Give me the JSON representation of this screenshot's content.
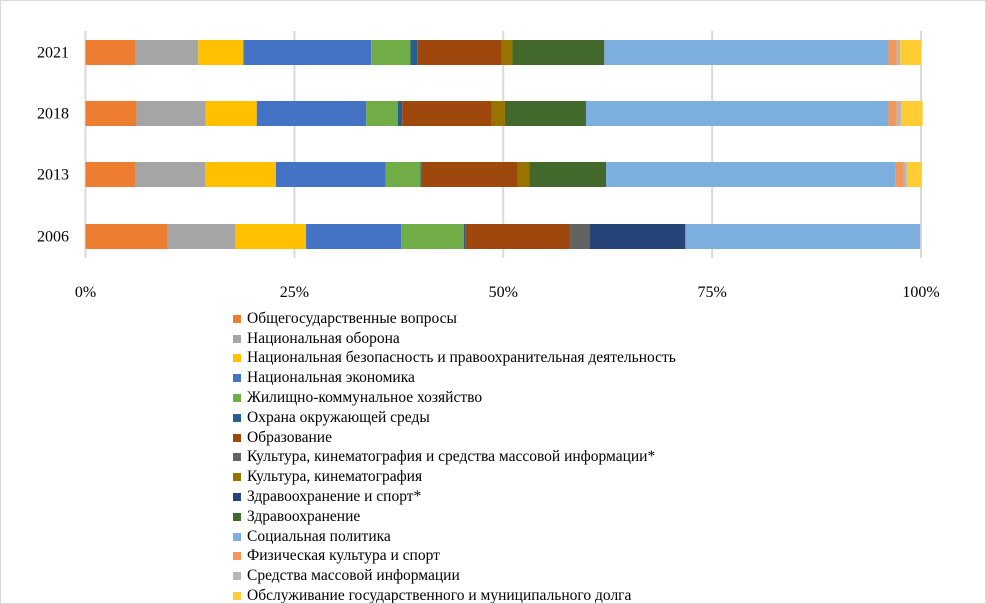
{
  "chart_data": {
    "type": "bar",
    "orientation": "horizontal",
    "stacked": "percent",
    "categories": [
      "2021",
      "2018",
      "2013",
      "2006"
    ],
    "xlim": [
      0,
      100
    ],
    "xticks": [
      "0%",
      "25%",
      "50%",
      "75%",
      "100%"
    ],
    "grid": true,
    "legend_position": "bottom",
    "series": [
      {
        "name": "Общегосударственные вопросы",
        "color": "#ED7D31",
        "values": [
          6.0,
          6.1,
          6.0,
          9.8
        ]
      },
      {
        "name": "Национальная оборона",
        "color": "#A5A5A5",
        "values": [
          7.5,
          8.3,
          8.3,
          8.1
        ]
      },
      {
        "name": "Национальная безопасность и правоохранительная деятельность",
        "color": "#FFC000",
        "values": [
          5.4,
          6.1,
          8.5,
          8.5
        ]
      },
      {
        "name": "Национальная экономика",
        "color": "#4472C4",
        "values": [
          15.3,
          13.1,
          13.1,
          11.4
        ]
      },
      {
        "name": "Жилищно-коммунальное хозяйство",
        "color": "#70AD47",
        "values": [
          4.7,
          3.8,
          4.2,
          7.5
        ]
      },
      {
        "name": "Охрана окружающей среды",
        "color": "#255E91",
        "values": [
          0.8,
          0.5,
          0.1,
          0.2
        ]
      },
      {
        "name": "Образование",
        "color": "#9E480E",
        "values": [
          10.1,
          10.7,
          11.5,
          12.5
        ]
      },
      {
        "name": "Культура, кинематография и средства массовой информации*",
        "color": "#636363",
        "values": [
          0,
          0,
          0,
          2.3
        ]
      },
      {
        "name": "Культура, кинематография",
        "color": "#997300",
        "values": [
          1.3,
          1.6,
          1.4,
          0
        ]
      },
      {
        "name": "Здравоохранение и спорт*",
        "color": "#264478",
        "values": [
          0,
          0,
          0,
          11.5
        ]
      },
      {
        "name": "Здравоохранение",
        "color": "#43682B",
        "values": [
          11.0,
          9.7,
          9.2,
          0
        ]
      },
      {
        "name": "Социальная политика",
        "color": "#7CAFDD",
        "values": [
          34.0,
          36.2,
          34.6,
          28.1
        ]
      },
      {
        "name": "Физическая культура и спорт",
        "color": "#F1975A",
        "values": [
          1.0,
          1.0,
          1.0,
          0
        ]
      },
      {
        "name": "Средства массовой информации",
        "color": "#B7B7B7",
        "values": [
          0.4,
          0.5,
          0.4,
          0
        ]
      },
      {
        "name": "Обслуживание государственного и муниципального долга",
        "color": "#FFCD33",
        "values": [
          2.5,
          2.6,
          1.8,
          0
        ]
      }
    ]
  }
}
